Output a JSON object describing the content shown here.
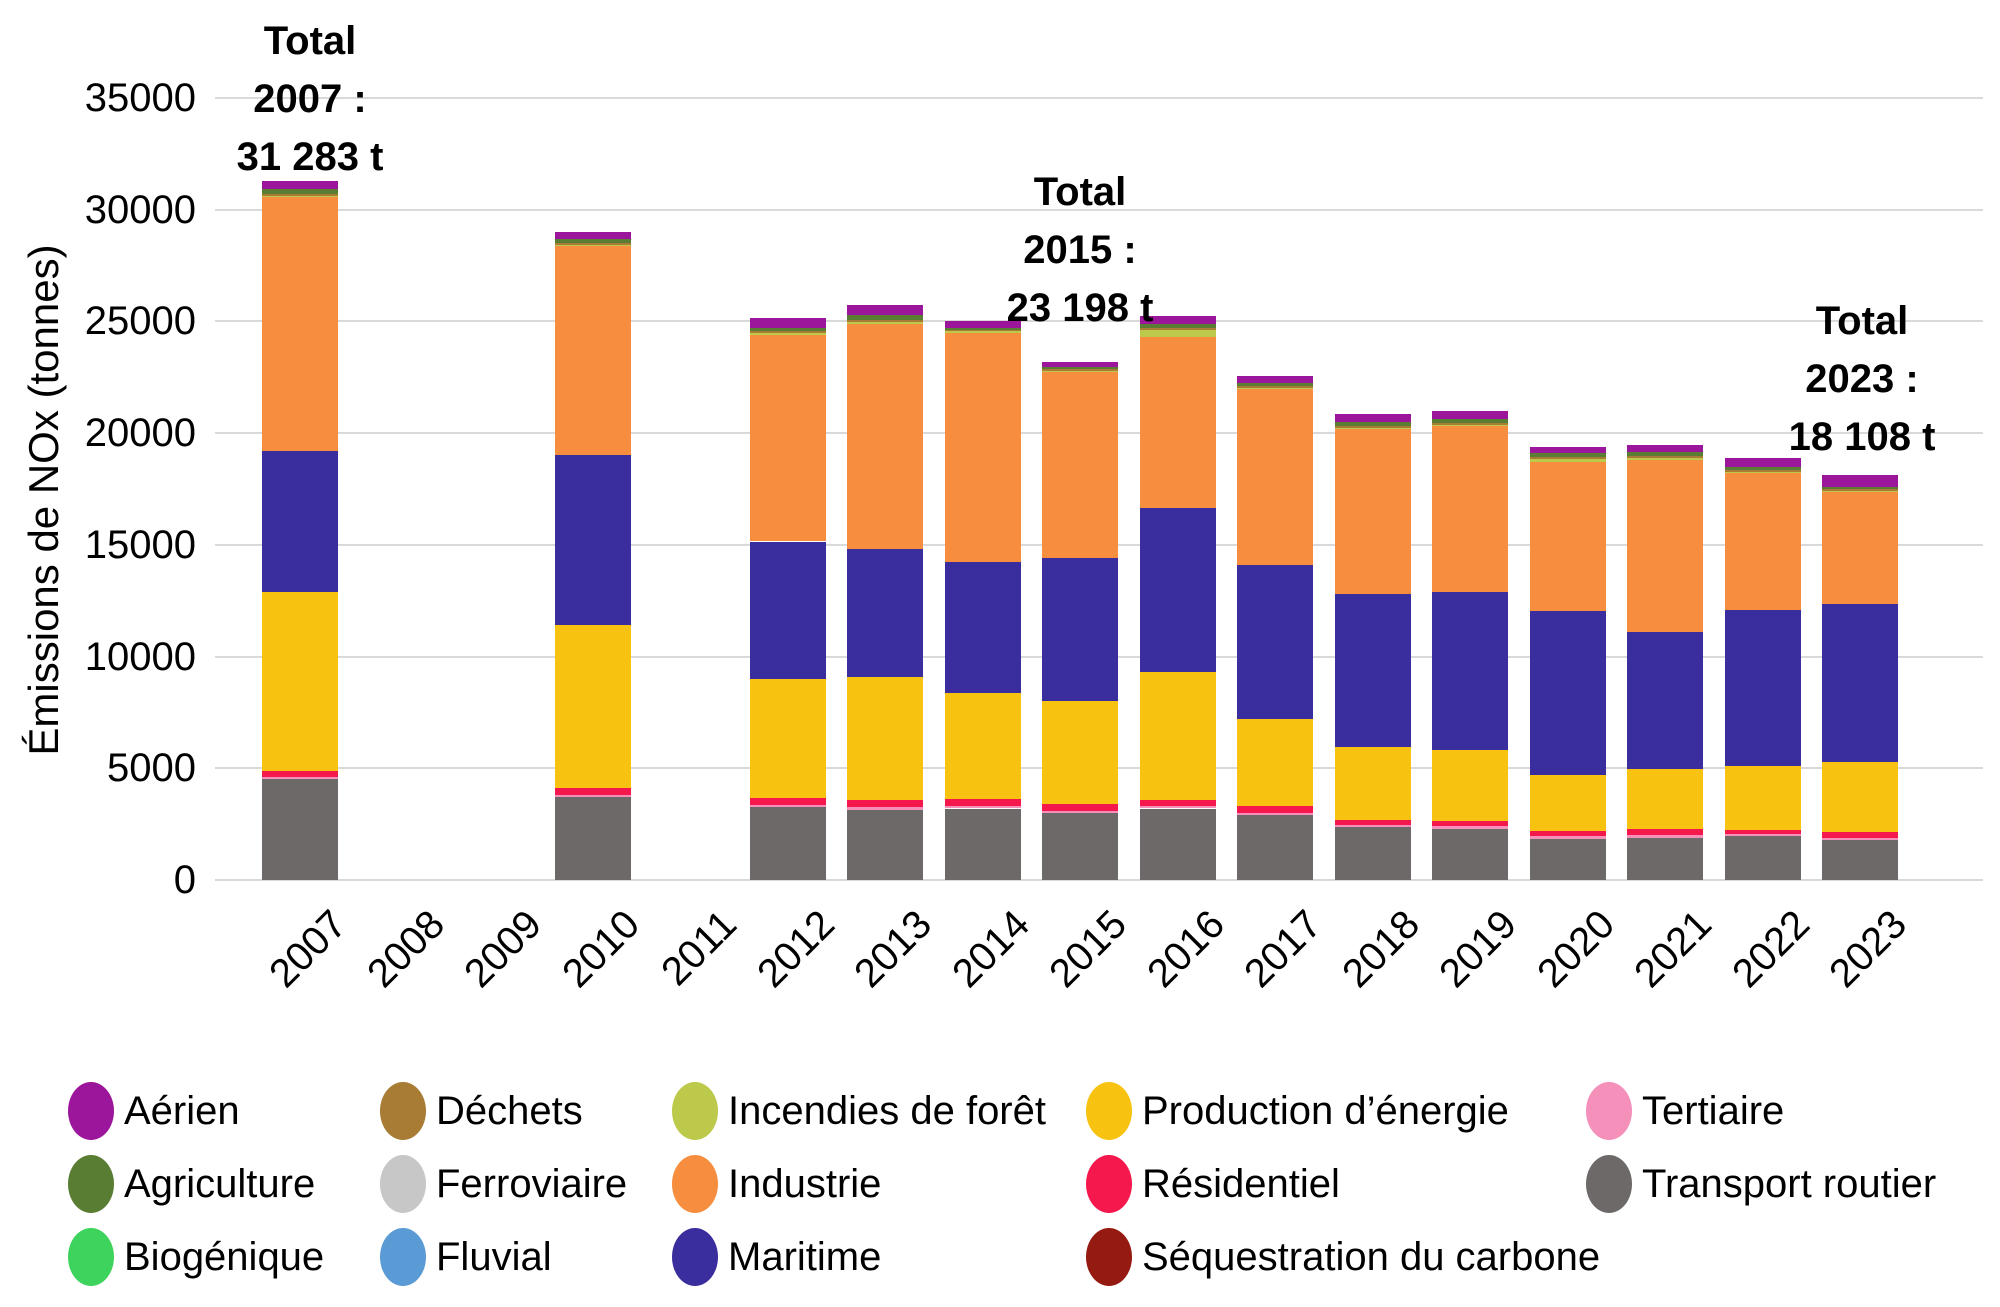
{
  "chart_data": {
    "type": "bar",
    "stacked": true,
    "title": "",
    "xlabel": "",
    "ylabel": "Émissions de NOx (tonnes)",
    "ylim": [
      0,
      35000
    ],
    "ytick_step": 5000,
    "grid": true,
    "legend_position": "bottom",
    "categories": [
      "2007",
      "2008",
      "2009",
      "2010",
      "2011",
      "2012",
      "2013",
      "2014",
      "2015",
      "2016",
      "2017",
      "2018",
      "2019",
      "2020",
      "2021",
      "2022",
      "2023"
    ],
    "series": [
      {
        "key": "transport-routier",
        "name": "Transport routier",
        "color": "#6e6969",
        "values": [
          4500,
          0,
          0,
          3700,
          0,
          3250,
          3150,
          3200,
          3000,
          3200,
          2900,
          2350,
          2300,
          1850,
          1900,
          1950,
          1800
        ]
      },
      {
        "key": "tertiaire",
        "name": "Tertiaire",
        "color": "#f590bb",
        "values": [
          120,
          0,
          0,
          100,
          0,
          100,
          100,
          100,
          100,
          100,
          100,
          100,
          100,
          100,
          100,
          100,
          100
        ]
      },
      {
        "key": "residentiel",
        "name": "Résidentiel",
        "color": "#f5184d",
        "values": [
          280,
          0,
          0,
          300,
          0,
          300,
          350,
          330,
          300,
          300,
          300,
          250,
          250,
          250,
          280,
          200,
          250
        ]
      },
      {
        "key": "production-denergie",
        "name": "Production d’énergie",
        "color": "#f7c210",
        "values": [
          8000,
          0,
          0,
          7300,
          0,
          5350,
          5480,
          4760,
          4600,
          5700,
          3900,
          3250,
          3180,
          2500,
          2700,
          2850,
          3150
        ]
      },
      {
        "key": "maritime",
        "name": "Maritime",
        "color": "#3a2d9e",
        "values": [
          6300,
          0,
          0,
          7600,
          0,
          6150,
          5750,
          5860,
          6400,
          7350,
          6900,
          6850,
          7070,
          7350,
          6120,
          7000,
          7050
        ]
      },
      {
        "key": "industrie",
        "name": "Industrie",
        "color": "#f78d3e",
        "values": [
          11383,
          0,
          0,
          9400,
          0,
          9300,
          10080,
          10300,
          8400,
          7650,
          7920,
          7450,
          7490,
          6650,
          7700,
          6200,
          5070
        ]
      },
      {
        "key": "incendies-de-foret",
        "name": "Incendies de forêt",
        "color": "#bcc94a",
        "values": [
          60,
          0,
          0,
          50,
          0,
          50,
          50,
          30,
          20,
          360,
          30,
          30,
          30,
          200,
          150,
          20,
          20
        ]
      },
      {
        "key": "dechets",
        "name": "Déchets",
        "color": "#a87c35",
        "values": [
          70,
          0,
          0,
          50,
          0,
          50,
          120,
          60,
          60,
          40,
          50,
          50,
          50,
          30,
          30,
          30,
          38
        ]
      },
      {
        "key": "agriculture",
        "name": "Agriculture",
        "color": "#587d33",
        "values": [
          200,
          0,
          0,
          200,
          0,
          170,
          200,
          80,
          88,
          200,
          150,
          160,
          180,
          170,
          170,
          150,
          130
        ]
      },
      {
        "key": "aerien",
        "name": "Aérien",
        "color": "#9b169b",
        "values": [
          370,
          0,
          0,
          300,
          0,
          430,
          470,
          280,
          230,
          350,
          300,
          360,
          350,
          300,
          300,
          400,
          500
        ]
      },
      {
        "key": "biogenique",
        "name": "Biogénique",
        "color": "#3ed35c",
        "values": [
          0,
          0,
          0,
          0,
          0,
          0,
          0,
          0,
          0,
          0,
          0,
          0,
          0,
          0,
          0,
          0,
          0
        ]
      },
      {
        "key": "ferroviaire",
        "name": "Ferroviaire",
        "color": "#c7c7c7",
        "values": [
          0,
          0,
          0,
          0,
          0,
          0,
          0,
          0,
          0,
          0,
          0,
          0,
          0,
          0,
          0,
          0,
          0
        ]
      },
      {
        "key": "fluvial",
        "name": "Fluvial",
        "color": "#5b9bd5",
        "values": [
          0,
          0,
          0,
          0,
          0,
          0,
          0,
          0,
          0,
          0,
          0,
          0,
          0,
          0,
          0,
          0,
          0
        ]
      },
      {
        "key": "sequestration-du-carbone",
        "name": "Séquestration du carbone",
        "color": "#951a11",
        "values": [
          0,
          0,
          0,
          0,
          0,
          0,
          0,
          0,
          0,
          0,
          0,
          0,
          0,
          0,
          0,
          0,
          0
        ]
      }
    ],
    "totals_shown": [
      {
        "category": "2007",
        "total_label": "31 283 t"
      },
      {
        "category": "2015",
        "total_label": "23 198 t"
      },
      {
        "category": "2023",
        "total_label": "18 108 t"
      }
    ],
    "annotations": [
      {
        "lines": [
          "Total",
          "2007 :",
          "31 283 t"
        ]
      },
      {
        "lines": [
          "Total",
          "2015 :",
          "23 198 t"
        ]
      },
      {
        "lines": [
          "Total",
          "2023 :",
          "18 108 t"
        ]
      }
    ],
    "legend_columns": [
      [
        "aerien",
        "agriculture",
        "biogenique"
      ],
      [
        "dechets",
        "ferroviaire",
        "fluvial"
      ],
      [
        "incendies-de-foret",
        "industrie",
        "maritime"
      ],
      [
        "production-denergie",
        "residentiel",
        "sequestration-du-carbone"
      ],
      [
        "tertiaire",
        "transport-routier"
      ]
    ],
    "ytick_labels": [
      "0",
      "5000",
      "10000",
      "15000",
      "20000",
      "25000",
      "30000",
      "35000"
    ]
  }
}
